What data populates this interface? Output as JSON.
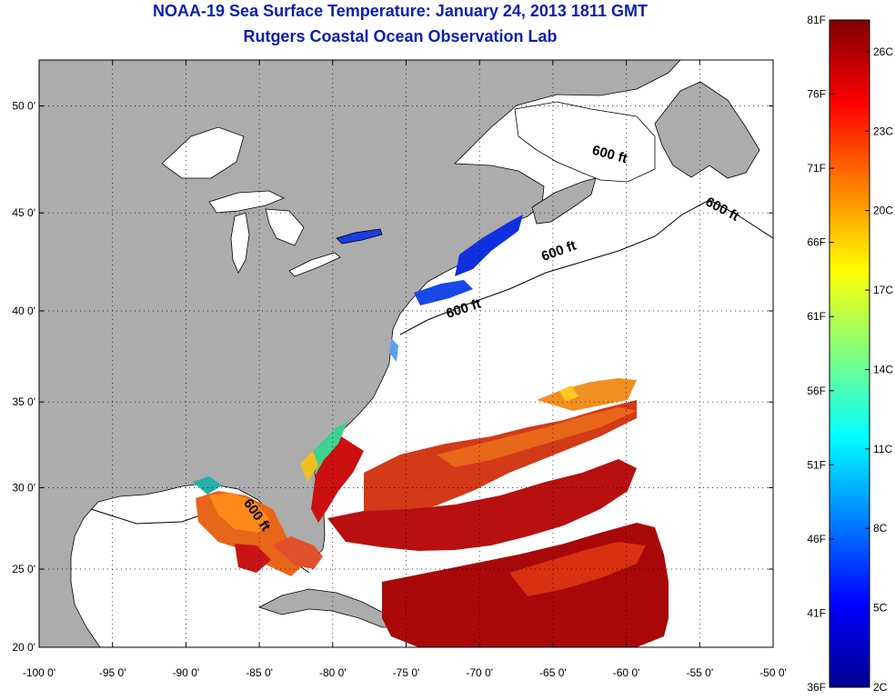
{
  "title_line1": "NOAA-19 Sea Surface Temperature:  January 24, 2013 1811 GMT",
  "title_line2": "Rutgers Coastal Ocean Observation Lab",
  "map": {
    "lon_range": [
      -100,
      -50
    ],
    "lat_range": [
      20,
      52
    ],
    "x_ticks": [
      -100,
      -95,
      -90,
      -85,
      -80,
      -75,
      -70,
      -65,
      -60,
      -55,
      -50
    ],
    "x_tick_labels": [
      "-100 0'",
      "-95 0'",
      "-90 0'",
      "-85 0'",
      "-80 0'",
      "-75 0'",
      "-70 0'",
      "-65 0'",
      "-60 0'",
      "-55 0'",
      "-50 0'"
    ],
    "y_ticks": [
      20,
      25,
      30,
      35,
      40,
      45,
      50
    ],
    "y_tick_labels": [
      "20 0'",
      "25 0'",
      "30 0'",
      "35 0'",
      "40 0'",
      "45 0'",
      "50 0'"
    ],
    "grid": "dotted",
    "land_color": "#acacac",
    "no_data_color": "#ffffff"
  },
  "contour_labels": [
    {
      "text": "600 ft",
      "lon": -61.2,
      "lat": 47.6,
      "rotate": 15
    },
    {
      "text": "600 ft",
      "lon": -53.6,
      "lat": 45.0,
      "rotate": 28
    },
    {
      "text": "600 ft",
      "lon": -64.5,
      "lat": 42.9,
      "rotate": -20
    },
    {
      "text": "600 ft",
      "lon": -71.0,
      "lat": 39.9,
      "rotate": -18
    },
    {
      "text": "600 ft",
      "lon": -85.4,
      "lat": 28.2,
      "rotate": 55
    }
  ],
  "colorbar": {
    "range_f": [
      36,
      81
    ],
    "range_c": [
      2,
      27.2
    ],
    "f_labels": [
      {
        "v": 81,
        "t": "81F"
      },
      {
        "v": 76,
        "t": "76F"
      },
      {
        "v": 71,
        "t": "71F"
      },
      {
        "v": 66,
        "t": "66F"
      },
      {
        "v": 61,
        "t": "61F"
      },
      {
        "v": 56,
        "t": "56F"
      },
      {
        "v": 51,
        "t": "51F"
      },
      {
        "v": 46,
        "t": "46F"
      },
      {
        "v": 41,
        "t": "41F"
      },
      {
        "v": 36,
        "t": "36F"
      }
    ],
    "c_labels": [
      {
        "v": 26,
        "t": "26C"
      },
      {
        "v": 23,
        "t": "23C"
      },
      {
        "v": 20,
        "t": "20C"
      },
      {
        "v": 17,
        "t": "17C"
      },
      {
        "v": 14,
        "t": "14C"
      },
      {
        "v": 11,
        "t": "11C"
      },
      {
        "v": 8,
        "t": "8C"
      },
      {
        "v": 5,
        "t": "5C"
      },
      {
        "v": 2,
        "t": "2C"
      }
    ],
    "colors": [
      "#00008f",
      "#0000ff",
      "#0080ff",
      "#00ffff",
      "#80ff80",
      "#ffff00",
      "#ff8000",
      "#ff0000",
      "#800000"
    ]
  }
}
